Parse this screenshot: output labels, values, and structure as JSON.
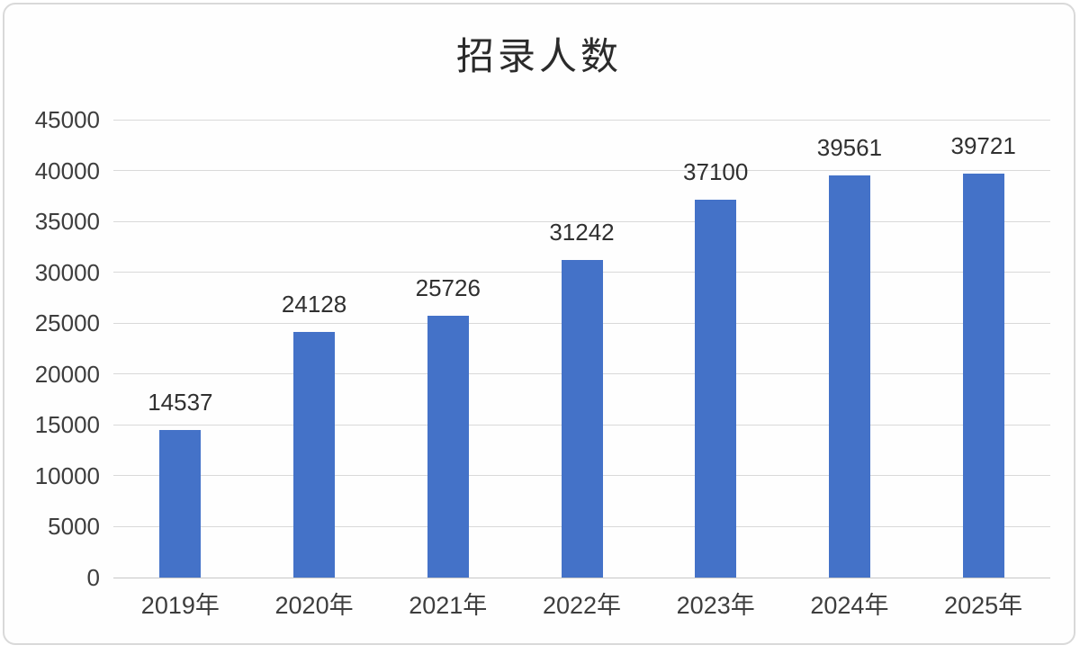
{
  "chart_data": {
    "type": "bar",
    "title": "招录人数",
    "categories": [
      "2019年",
      "2020年",
      "2021年",
      "2022年",
      "2023年",
      "2024年",
      "2025年"
    ],
    "values": [
      14537,
      24128,
      25726,
      31242,
      37100,
      39561,
      39721
    ],
    "series": [
      {
        "name": "招录人数",
        "values": [
          14537,
          24128,
          25726,
          31242,
          37100,
          39561,
          39721
        ]
      }
    ],
    "xlabel": "",
    "ylabel": "",
    "ylim": [
      0,
      45000
    ],
    "ytick_step": 5000,
    "yticks": [
      0,
      5000,
      10000,
      15000,
      20000,
      25000,
      30000,
      35000,
      40000,
      45000
    ],
    "grid": true,
    "legend_position": "none",
    "data_labels_visible": true,
    "colors": {
      "bar": "#4472c8",
      "gridline": "#d9d9d9",
      "axis_text": "#3d3d3d",
      "title_text": "#2b2b2b",
      "background": "#fefefe",
      "border": "#d9d9d9"
    }
  }
}
